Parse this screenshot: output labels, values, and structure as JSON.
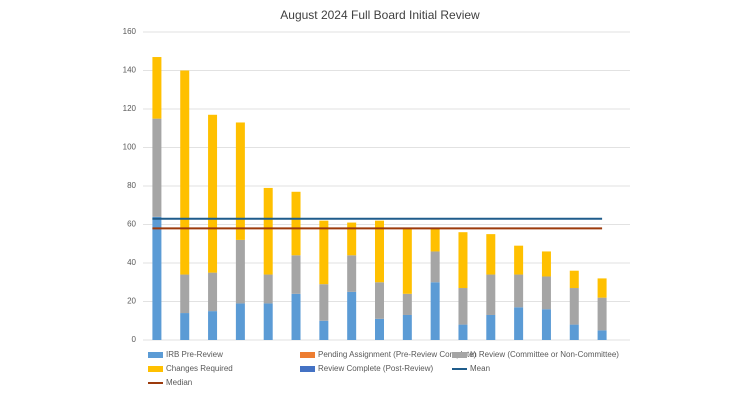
{
  "chart_data": {
    "type": "bar",
    "stacked": true,
    "title": "August 2024 Full Board Initial Review",
    "categories": [
      null,
      null,
      null,
      null,
      null,
      null,
      null,
      null,
      null,
      null,
      null,
      null,
      null,
      null,
      null,
      null,
      null
    ],
    "ylim": [
      0,
      160
    ],
    "yticks": [
      0,
      20,
      40,
      60,
      80,
      100,
      120,
      140,
      160
    ],
    "grid": true,
    "series": [
      {
        "name": "IRB Pre-Review",
        "color": "#5b9bd5",
        "type": "bar",
        "values": [
          64,
          14,
          15,
          19,
          19,
          24,
          10,
          25,
          11,
          13,
          30,
          8,
          13,
          17,
          16,
          8,
          5
        ]
      },
      {
        "name": "Pending Assignment (Pre-Review Complete)",
        "color": "#ed7d31",
        "type": "bar",
        "values": [
          0,
          0,
          0,
          0,
          0,
          0,
          0,
          0,
          0,
          0,
          0,
          0,
          0,
          0,
          0,
          0,
          0
        ]
      },
      {
        "name": "In Review (Committee or Non-Committee)",
        "color": "#a5a5a5",
        "type": "bar",
        "values": [
          51,
          20,
          20,
          33,
          15,
          20,
          19,
          19,
          19,
          11,
          16,
          19,
          21,
          17,
          17,
          19,
          17
        ]
      },
      {
        "name": "Changes Required",
        "color": "#ffc000",
        "type": "bar",
        "values": [
          32,
          106,
          82,
          61,
          45,
          33,
          33,
          17,
          32,
          34,
          12,
          29,
          21,
          15,
          13,
          9,
          10
        ]
      },
      {
        "name": "Review Complete (Post-Review)",
        "color": "#4472c4",
        "type": "bar",
        "values": [
          0,
          0,
          0,
          0,
          0,
          0,
          0,
          0,
          0,
          0,
          0,
          0,
          0,
          0,
          0,
          0,
          0
        ]
      },
      {
        "name": "Mean",
        "color": "#1f5c8b",
        "type": "line",
        "values": [
          63,
          63,
          63,
          63,
          63,
          63,
          63,
          63,
          63,
          63,
          63,
          63,
          63,
          63,
          63,
          63,
          63
        ]
      },
      {
        "name": "Median",
        "color": "#9c3a0c",
        "type": "line",
        "values": [
          58,
          58,
          58,
          58,
          58,
          58,
          58,
          58,
          58,
          58,
          58,
          58,
          58,
          58,
          58,
          58,
          58
        ]
      }
    ]
  }
}
